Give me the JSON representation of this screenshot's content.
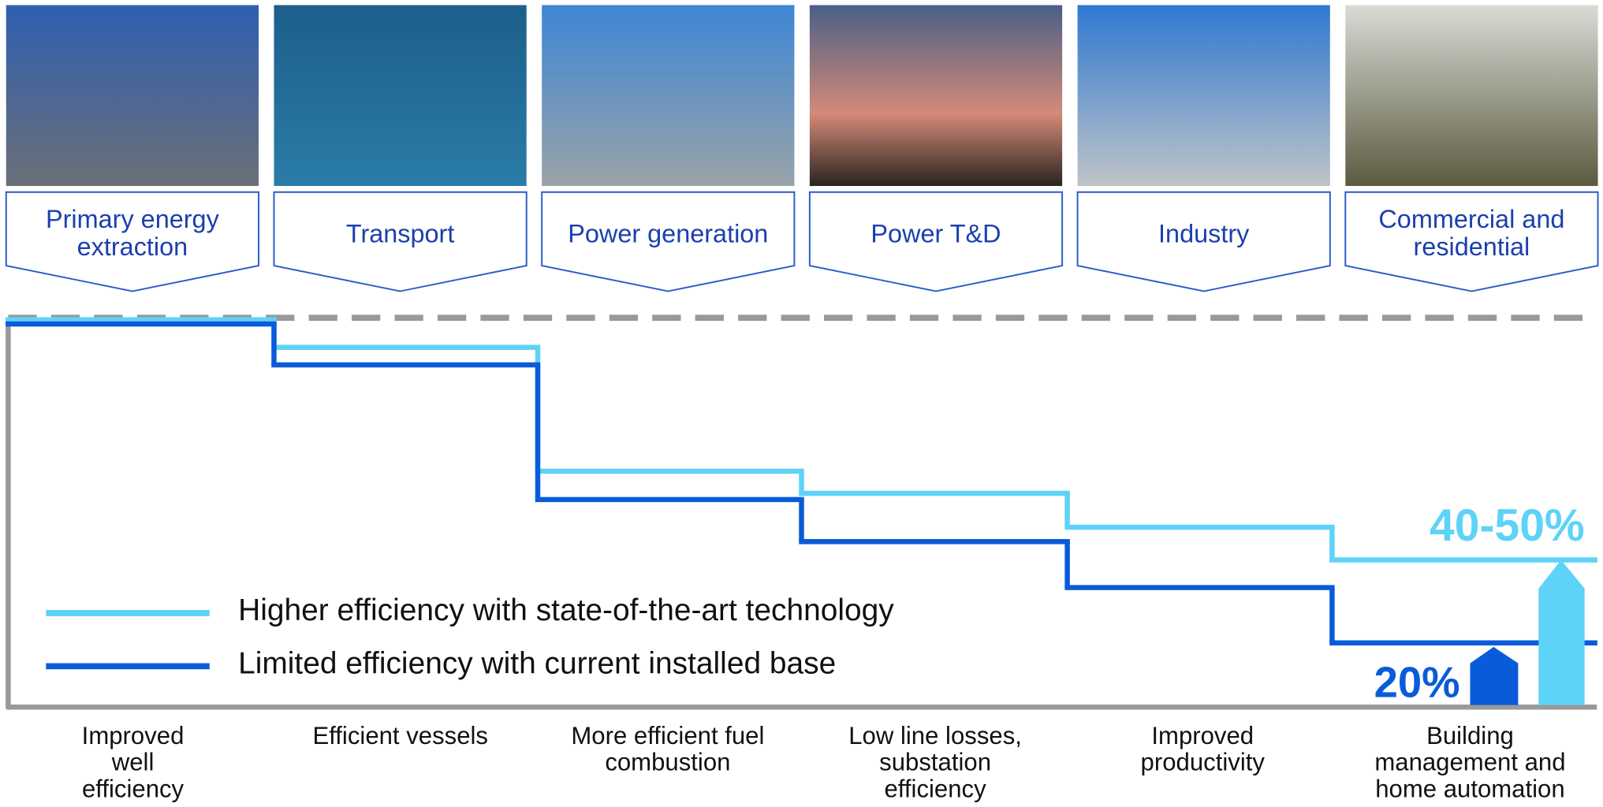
{
  "chart_data": {
    "type": "step",
    "sectors": [
      "Primary energy extraction",
      "Transport",
      "Power generation",
      "Power T&D",
      "Industry",
      "Commercial and residential"
    ],
    "categories": [
      "Improved well efficiency",
      "Efficient vessels",
      "More efficient fuel combustion",
      "Low line losses, substation efficiency",
      "Improved productivity",
      "Building management and home automation"
    ],
    "series": [
      {
        "name": "Higher efficiency with state-of-the-art technology",
        "color": "#5dd3f7",
        "values": [
          99.5,
          92.4,
          60.6,
          54.9,
          46.2,
          37.8
        ]
      },
      {
        "name": "Limited efficiency with current installed base",
        "color": "#0a5bd9",
        "values": [
          98.4,
          87.9,
          53.3,
          42.5,
          30.7,
          16.5
        ]
      }
    ],
    "ylim": [
      0,
      100
    ],
    "annotations": [
      "40-50%",
      "20%"
    ]
  }
}
